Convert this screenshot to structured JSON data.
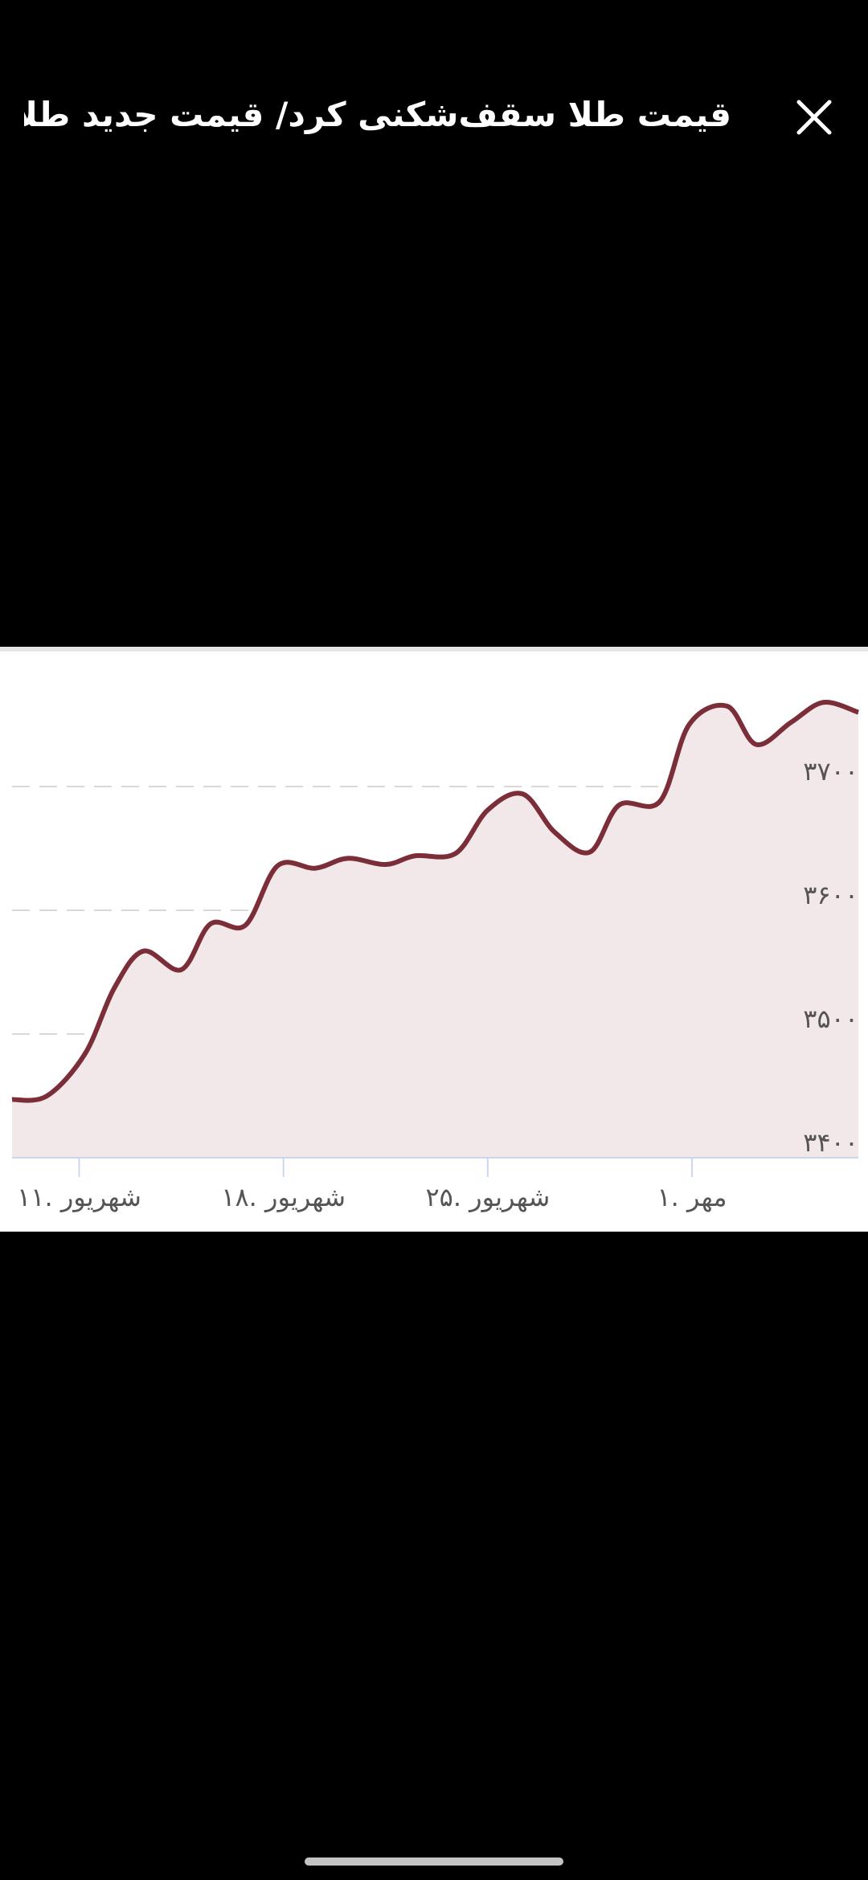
{
  "header": {
    "title": "قیمت طلا سقف‌شکنی کرد/ قیمت جدید طلا..."
  },
  "chart_data": {
    "type": "area",
    "x": [
      8.7,
      9.9,
      11.2,
      12.2,
      13.2,
      14.5,
      15.5,
      16.7,
      17.8,
      19.1,
      20.2,
      21.5,
      22.5,
      23.9,
      25.0,
      26.2,
      27.3,
      28.5,
      29.5,
      30.9,
      31.9,
      33.2,
      34.2,
      35.4,
      36.5,
      37.7
    ],
    "values": [
      3447,
      3450,
      3484,
      3537,
      3567,
      3552,
      3589,
      3588,
      3636,
      3634,
      3642,
      3637,
      3644,
      3646,
      3681,
      3694,
      3663,
      3647,
      3685,
      3688,
      3750,
      3765,
      3734,
      3752,
      3768,
      3760
    ],
    "color": "#7b2d38",
    "fill": "#f2e7e9",
    "xlim": [
      8.7,
      37.7
    ],
    "xticks": [
      {
        "value": 11,
        "label": "۱۱. شهریور"
      },
      {
        "value": 18,
        "label": "۱۸. شهریور"
      },
      {
        "value": 25,
        "label": "۲۵. شهریور"
      },
      {
        "value": 32,
        "label": "۱. مهر"
      }
    ],
    "ylim": [
      3400,
      3800
    ],
    "yticks": [
      {
        "value": 3400,
        "label": "۳۴۰۰"
      },
      {
        "value": 3500,
        "label": "۳۵۰۰"
      },
      {
        "value": 3600,
        "label": "۳۶۰۰"
      },
      {
        "value": 3700,
        "label": "۳۷۰۰"
      }
    ],
    "grid": true
  }
}
